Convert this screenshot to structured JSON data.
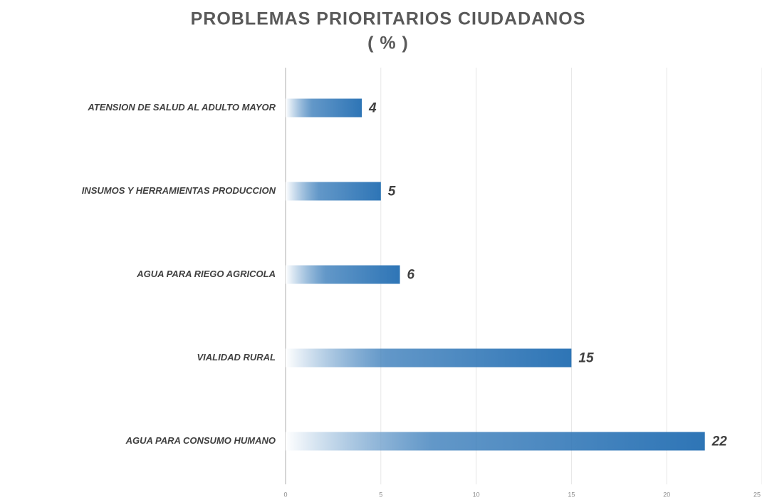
{
  "chart_data": {
    "type": "bar",
    "orientation": "horizontal",
    "title": "PROBLEMAS PRIORITARIOS CIUDADANOS",
    "subtitle": "( % )",
    "categories": [
      "ATENSION DE SALUD AL ADULTO MAYOR",
      "INSUMOS Y HERRAMIENTAS PRODUCCION",
      "AGUA PARA RIEGO AGRICOLA",
      "VIALIDAD RURAL",
      "AGUA PARA CONSUMO HUMANO"
    ],
    "values": [
      4,
      5,
      6,
      15,
      22
    ],
    "color": "#2e75b6",
    "xlim": [
      0,
      25
    ],
    "xticks": [
      0,
      5,
      10,
      15,
      20,
      25
    ],
    "grid": true
  }
}
